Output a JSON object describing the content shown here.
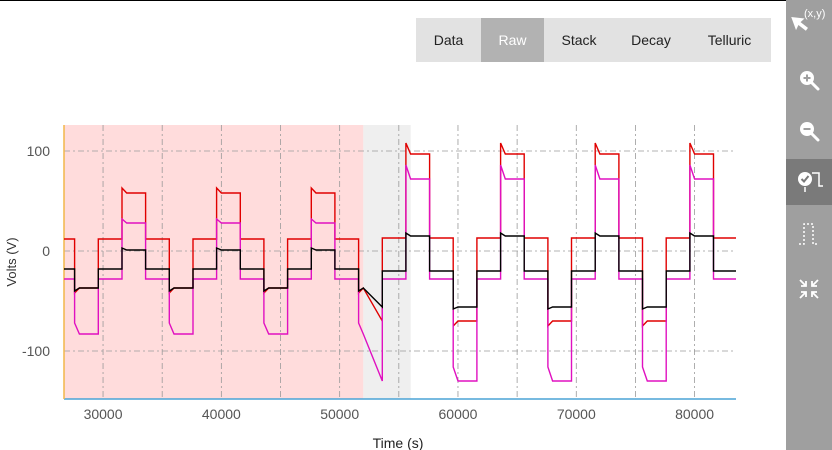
{
  "tabs": [
    {
      "label": "Data",
      "active": false
    },
    {
      "label": "Raw",
      "active": true
    },
    {
      "label": "Stack",
      "active": false
    },
    {
      "label": "Decay",
      "active": false
    },
    {
      "label": "Telluric",
      "active": false
    }
  ],
  "toolbar": {
    "tools": [
      {
        "icon": "select-xy-icon",
        "label": "(x,y)",
        "active": false
      },
      {
        "icon": "zoom-in-icon",
        "active": false
      },
      {
        "icon": "zoom-out-icon",
        "active": false
      },
      {
        "icon": "check-square-wave-icon",
        "active": true
      },
      {
        "icon": "square-wave-icon",
        "active": false
      },
      {
        "icon": "collapse-icon",
        "active": false
      }
    ]
  },
  "chart_data": {
    "type": "line",
    "xlabel": "Time (s)",
    "ylabel": "Volts (V)",
    "xlim": [
      26700,
      83500
    ],
    "ylim": [
      -148,
      126
    ],
    "xticks": [
      30000,
      40000,
      50000,
      60000,
      70000,
      80000
    ],
    "yticks": [
      -100,
      0,
      100
    ],
    "grid": true,
    "regions": [
      {
        "x0": 26700,
        "x1": 52000,
        "color": "#ffdcdc"
      },
      {
        "x0": 52000,
        "x1": 56000,
        "color": "#efefef"
      }
    ],
    "series": [
      {
        "color": "#e00000",
        "period": 8000,
        "start": 26700,
        "end": 83500,
        "segments": [
          {
            "span": [
              26700,
              52000
            ],
            "base": 12,
            "neg": -37,
            "pos": 58,
            "negSpike": -42,
            "posSpike": 63
          },
          {
            "span": [
              52000,
              83500
            ],
            "base": 13,
            "neg": -70,
            "pos": 97,
            "negSpike": -75,
            "posSpike": 108
          }
        ]
      },
      {
        "color": "#e010c0",
        "period": 8000,
        "start": 26700,
        "end": 83500,
        "segments": [
          {
            "span": [
              26700,
              52000
            ],
            "base": -28,
            "neg": -83,
            "pos": 28,
            "negSpike": -72,
            "posSpike": 32
          },
          {
            "span": [
              52000,
              83500
            ],
            "base": -28,
            "neg": -130,
            "pos": 72,
            "negSpike": -116,
            "posSpike": 86
          }
        ]
      },
      {
        "color": "#000000",
        "period": 8000,
        "start": 26700,
        "end": 83500,
        "segments": [
          {
            "span": [
              26700,
              52000
            ],
            "base": -18,
            "neg": -37,
            "pos": 1,
            "negSpike": -40,
            "posSpike": 3
          },
          {
            "span": [
              52000,
              83500
            ],
            "base": -20,
            "neg": -56,
            "pos": 15,
            "negSpike": -58,
            "posSpike": 18
          }
        ]
      }
    ]
  }
}
